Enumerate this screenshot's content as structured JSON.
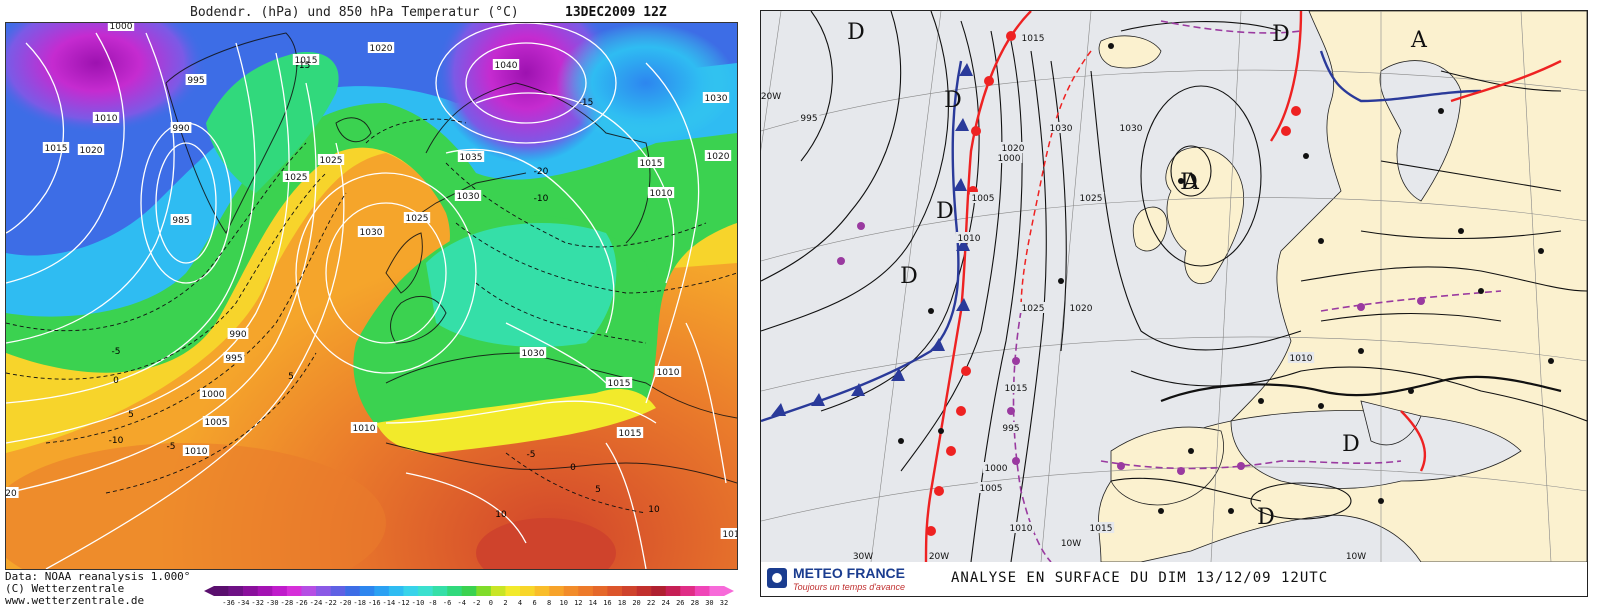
{
  "left_panel": {
    "title": "Bodendr. (hPa) und 850 hPa Temperatur (°C)",
    "date": "13DEC2009 12Z",
    "credit_lines": [
      "Data: NOAA reanalysis 1.000°",
      "(C) Wetterzentrale",
      "www.wetterzentrale.de"
    ],
    "isobar_labels": [
      "1000",
      "1040",
      "1015",
      "1020",
      "995",
      "1010",
      "990",
      "1015",
      "1020",
      "985",
      "1025",
      "1025",
      "1035",
      "1030",
      "1030",
      "1015",
      "1030",
      "1020",
      "1025",
      "1010",
      "990",
      "995",
      "1000",
      "1005",
      "1010",
      "1010",
      "1030",
      "1015",
      "1015",
      "1010",
      "101",
      "20"
    ],
    "temp_labels": [
      "-15",
      "-15",
      "-20",
      "-10",
      "-5",
      "0",
      "5",
      "-5",
      "-10",
      "5",
      "-5",
      "0",
      "5",
      "10",
      "10"
    ],
    "colorbar_ticks": [
      "-36",
      "-34",
      "-32",
      "-30",
      "-28",
      "-26",
      "-24",
      "-22",
      "-20",
      "-18",
      "-16",
      "-14",
      "-12",
      "-10",
      "-8",
      "-6",
      "-4",
      "-2",
      "0",
      "2",
      "4",
      "6",
      "8",
      "10",
      "12",
      "14",
      "16",
      "18",
      "20",
      "22",
      "24",
      "26",
      "28",
      "30",
      "32"
    ],
    "colorbar_colors": [
      "#5a0f6e",
      "#6e1185",
      "#8a109c",
      "#a413b3",
      "#c01ccb",
      "#d62fd9",
      "#b54ee4",
      "#8a59e6",
      "#5f61e4",
      "#3d6de6",
      "#2d86ef",
      "#2ba1f3",
      "#2fbcf2",
      "#38d3ea",
      "#3be0cf",
      "#35dfa8",
      "#31d97c",
      "#3bd250",
      "#80dc2a",
      "#c9e526",
      "#f2ea2b",
      "#f8d62a",
      "#f9bd2a",
      "#f7a32a",
      "#f28c2a",
      "#ed7a2a",
      "#e5682a",
      "#dc552b",
      "#cf432c",
      "#c2302d",
      "#b02030",
      "#c61f55",
      "#e02d86",
      "#f045b8",
      "#f76ad9"
    ]
  },
  "right_panel": {
    "pressure_centers": [
      "D",
      "D",
      "D",
      "D",
      "D",
      "D",
      "D",
      "D",
      "A",
      "A"
    ],
    "isobar_labels": [
      "995",
      "1000",
      "1005",
      "1010",
      "1015",
      "1020",
      "1025",
      "1030",
      "1030",
      "1025",
      "1020",
      "1015",
      "1010",
      "995",
      "1000",
      "1005",
      "1010",
      "1015"
    ],
    "latlon_labels": [
      "20W",
      "10W",
      "30W",
      "20W",
      "10W"
    ],
    "logo_name": "METEO FRANCE",
    "logo_tagline": "Toujours un temps d'avance",
    "caption": "ANALYSE EN SURFACE DU DIM 13/12/09 12UTC"
  }
}
